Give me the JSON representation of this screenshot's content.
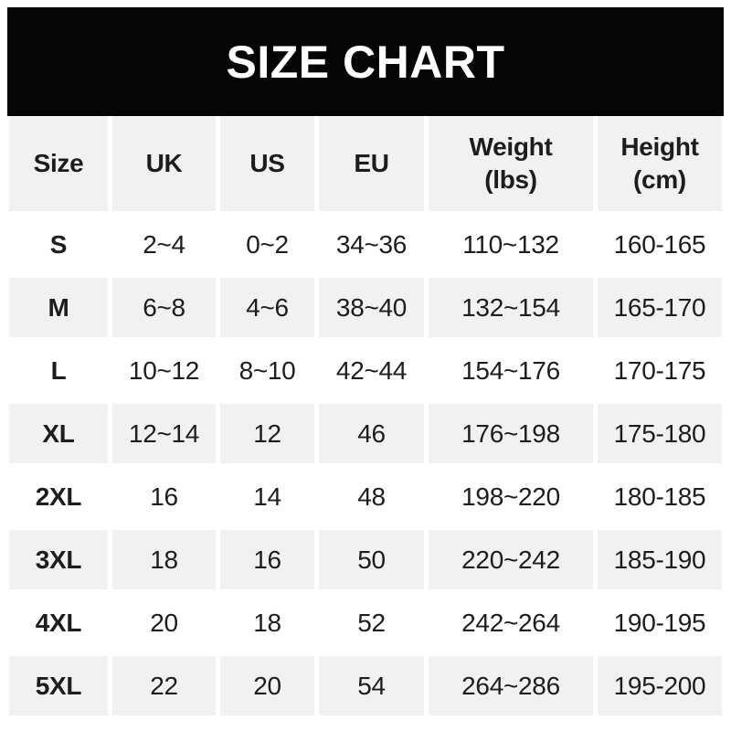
{
  "banner": {
    "title": "SIZE CHART"
  },
  "header_display": [
    [
      "Size",
      ""
    ],
    [
      "UK",
      ""
    ],
    [
      "US",
      ""
    ],
    [
      "EU",
      ""
    ],
    [
      "Weight",
      "(lbs)"
    ],
    [
      "Height",
      "(cm)"
    ]
  ],
  "chart_data": {
    "type": "table",
    "title": "SIZE CHART",
    "columns": [
      "Size",
      "UK",
      "US",
      "EU",
      "Weight (lbs)",
      "Height (cm)"
    ],
    "rows": [
      [
        "S",
        "2~4",
        "0~2",
        "34~36",
        "110~132",
        "160-165"
      ],
      [
        "M",
        "6~8",
        "4~6",
        "38~40",
        "132~154",
        "165-170"
      ],
      [
        "L",
        "10~12",
        "8~10",
        "42~44",
        "154~176",
        "170-175"
      ],
      [
        "XL",
        "12~14",
        "12",
        "46",
        "176~198",
        "175-180"
      ],
      [
        "2XL",
        "16",
        "14",
        "48",
        "198~220",
        "180-185"
      ],
      [
        "3XL",
        "18",
        "16",
        "50",
        "220~242",
        "185-190"
      ],
      [
        "4XL",
        "20",
        "18",
        "52",
        "242~264",
        "190-195"
      ],
      [
        "5XL",
        "22",
        "20",
        "54",
        "264~286",
        "195-200"
      ]
    ]
  },
  "colors": {
    "banner_bg": "#050505",
    "banner_text": "#ffffff",
    "row_alt_bg": "#f1f1f2",
    "row_bg": "#ffffff",
    "text": "#1d1d1f"
  }
}
